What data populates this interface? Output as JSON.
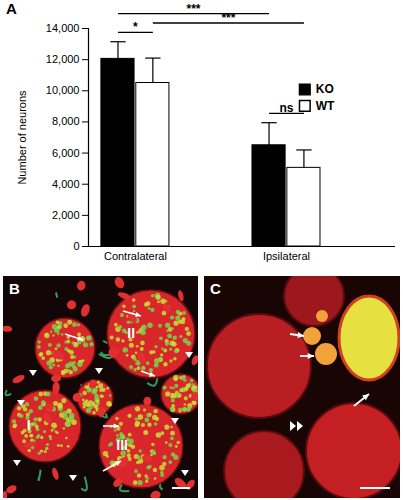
{
  "chart_data": {
    "type": "bar",
    "panel_label": "A",
    "categories": [
      "Contralateral",
      "Ipsilateral"
    ],
    "series": [
      {
        "name": "KO",
        "color": "#000000",
        "values": [
          12050,
          6500
        ],
        "errors": [
          1100,
          1450
        ]
      },
      {
        "name": "WT",
        "color": "#ffffff",
        "values": [
          10500,
          5050
        ],
        "errors": [
          1600,
          1150
        ]
      }
    ],
    "y_label": "Number of neurons",
    "ylim": [
      0,
      14000
    ],
    "yticks": [
      0,
      {
        "value": 2000,
        "label": "2,000"
      },
      {
        "value": 4000,
        "label": "4,000"
      },
      {
        "value": 6000,
        "label": "6,000"
      },
      {
        "value": 8000,
        "label": "8,000"
      },
      {
        "value": 10000,
        "label": "10,000"
      },
      {
        "value": 12000,
        "label": "12,000"
      },
      {
        "value": 14000,
        "label": "14,000"
      }
    ],
    "legend": "top-right",
    "significance": [
      {
        "between": [
          [
            "Contralateral",
            "KO"
          ],
          [
            "Ipsilateral",
            "KO"
          ]
        ],
        "label": "***"
      },
      {
        "between": [
          [
            "Contralateral",
            "WT"
          ],
          [
            "Ipsilateral",
            "WT"
          ]
        ],
        "label": "***"
      },
      {
        "between": [
          [
            "Contralateral",
            "KO"
          ],
          [
            "Contralateral",
            "WT"
          ]
        ],
        "label": "*"
      },
      {
        "between": [
          [
            "Ipsilateral",
            "KO"
          ],
          [
            "Ipsilateral",
            "WT"
          ]
        ],
        "label": "ns"
      }
    ]
  },
  "panels": [
    {
      "label": "B",
      "regions": [
        "I",
        "II",
        "III"
      ]
    },
    {
      "label": "C"
    }
  ]
}
